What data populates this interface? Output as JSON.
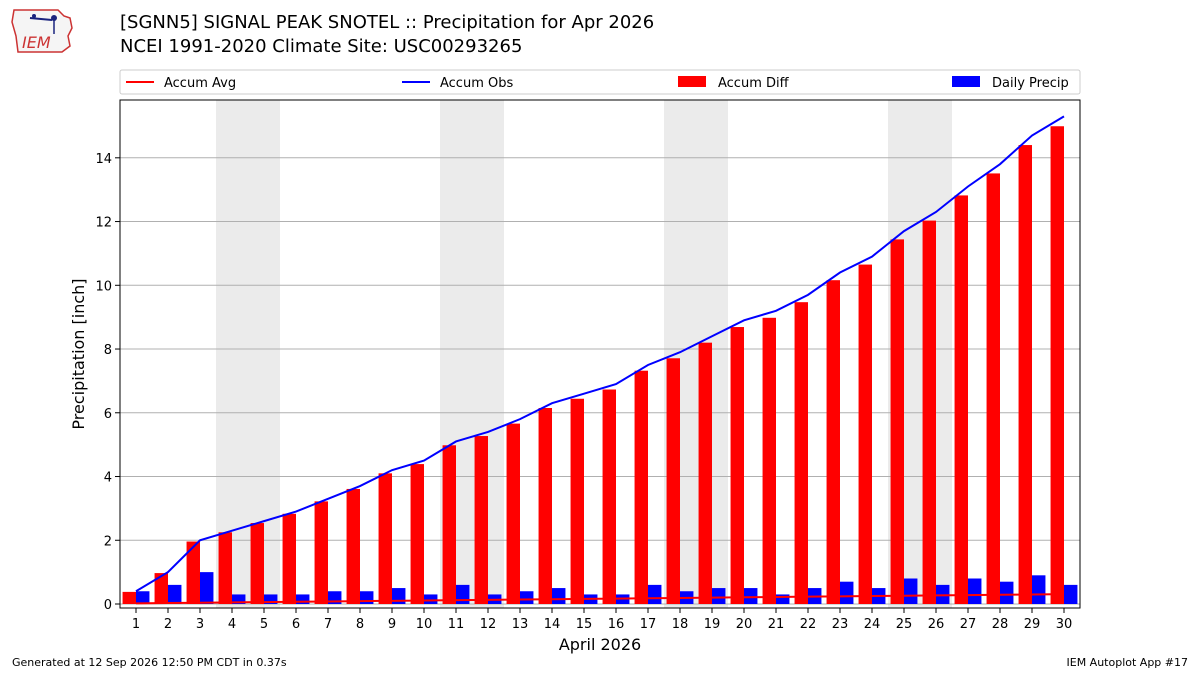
{
  "title_line1": "[SGNN5] SIGNAL PEAK SNOTEL :: Precipitation for Apr 2026",
  "title_line2": "NCEI 1991-2020 Climate Site: USC00293265",
  "logo_text": "IEM",
  "footer_left": "Generated at 12 Sep 2026 12:50 PM CDT in 0.37s",
  "footer_right": "IEM Autoplot App #17",
  "chart_data": {
    "type": "bar",
    "xlabel": "April 2026",
    "ylabel": "Precipitation [inch]",
    "xlim": [
      1,
      30
    ],
    "ylim": [
      0,
      15.5
    ],
    "yticks": [
      0,
      2,
      4,
      6,
      8,
      10,
      12,
      14
    ],
    "grid": "horizontal",
    "legend_placement": "top",
    "weekend_shading": [
      [
        4,
        5
      ],
      [
        11,
        12
      ],
      [
        18,
        19
      ],
      [
        25,
        26
      ]
    ],
    "categories": [
      "1",
      "2",
      "3",
      "4",
      "5",
      "6",
      "7",
      "8",
      "9",
      "10",
      "11",
      "12",
      "13",
      "14",
      "15",
      "16",
      "17",
      "18",
      "19",
      "20",
      "21",
      "22",
      "23",
      "24",
      "25",
      "26",
      "27",
      "28",
      "29",
      "30"
    ],
    "series": [
      {
        "name": "Accum Avg",
        "kind": "line",
        "color": "#ff0000",
        "values": [
          0.02,
          0.03,
          0.04,
          0.05,
          0.06,
          0.07,
          0.08,
          0.09,
          0.1,
          0.11,
          0.12,
          0.13,
          0.14,
          0.15,
          0.16,
          0.17,
          0.18,
          0.19,
          0.2,
          0.21,
          0.22,
          0.23,
          0.24,
          0.25,
          0.26,
          0.27,
          0.28,
          0.29,
          0.3,
          0.31
        ]
      },
      {
        "name": "Accum Obs",
        "kind": "line",
        "color": "#0000ff",
        "values": [
          0.4,
          1.0,
          2.0,
          2.3,
          2.6,
          2.9,
          3.3,
          3.7,
          4.2,
          4.5,
          5.1,
          5.4,
          5.8,
          6.3,
          6.6,
          6.9,
          7.5,
          7.9,
          8.4,
          8.9,
          9.2,
          9.7,
          10.4,
          10.9,
          11.7,
          12.3,
          13.1,
          13.8,
          14.7,
          15.3
        ]
      },
      {
        "name": "Accum Diff",
        "kind": "bar",
        "color": "#ff0000",
        "values": [
          0.38,
          0.97,
          1.96,
          2.25,
          2.54,
          2.83,
          3.22,
          3.61,
          4.1,
          4.39,
          4.98,
          5.27,
          5.66,
          6.15,
          6.44,
          6.73,
          7.32,
          7.71,
          8.2,
          8.69,
          8.98,
          9.47,
          10.16,
          10.65,
          11.44,
          12.03,
          12.82,
          13.51,
          14.4,
          14.99
        ]
      },
      {
        "name": "Daily Precip",
        "kind": "bar",
        "color": "#0000ff",
        "values": [
          0.4,
          0.6,
          1.0,
          0.3,
          0.3,
          0.3,
          0.4,
          0.4,
          0.5,
          0.3,
          0.6,
          0.3,
          0.4,
          0.5,
          0.3,
          0.3,
          0.6,
          0.4,
          0.5,
          0.5,
          0.3,
          0.5,
          0.7,
          0.5,
          0.8,
          0.6,
          0.8,
          0.7,
          0.9,
          0.6
        ]
      }
    ]
  }
}
